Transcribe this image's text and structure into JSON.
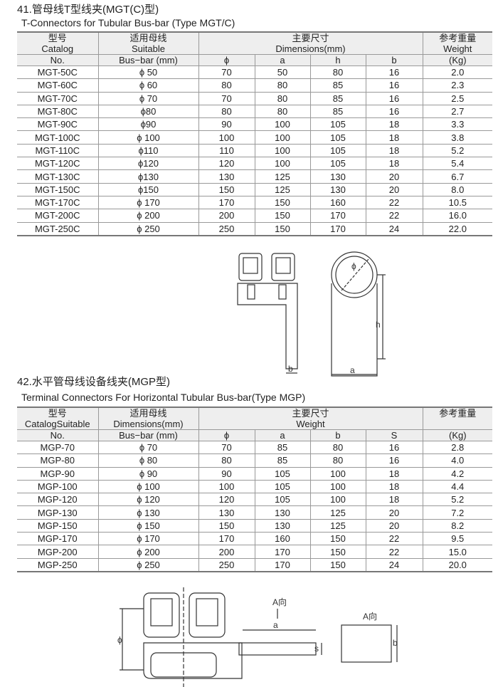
{
  "section1": {
    "title": "41.管母线T型线夹(MGT(C)型)",
    "subtitle": "T-Connectors for Tubular Bus-bar (Type MGT/C)",
    "header": {
      "model": [
        "型号",
        "Catalog",
        "No."
      ],
      "busbar": [
        "适用母线",
        "Suitable",
        "Bus−bar (mm)"
      ],
      "dims": [
        "主要尺寸",
        "Dimensions(mm)"
      ],
      "weight": [
        "参考重量",
        "Weight",
        "(Kg)"
      ],
      "sub": [
        "ϕ",
        "a",
        "h",
        "b"
      ]
    },
    "rows": [
      [
        "MGT-50C",
        "ϕ 50",
        "70",
        "50",
        "80",
        "16",
        "2.0"
      ],
      [
        "MGT-60C",
        "ϕ 60",
        "80",
        "80",
        "85",
        "16",
        "2.3"
      ],
      [
        "MGT-70C",
        "ϕ 70",
        "70",
        "80",
        "85",
        "16",
        "2.5"
      ],
      [
        "MGT-80C",
        "ϕ80",
        "80",
        "80",
        "85",
        "16",
        "2.7"
      ],
      [
        "MGT-90C",
        "ϕ90",
        "90",
        "100",
        "105",
        "18",
        "3.3"
      ],
      [
        "MGT-100C",
        "ϕ 100",
        "100",
        "100",
        "105",
        "18",
        "3.8"
      ],
      [
        "MGT-110C",
        "ϕ110",
        "110",
        "100",
        "105",
        "18",
        "5.2"
      ],
      [
        "MGT-120C",
        "ϕ120",
        "120",
        "100",
        "105",
        "18",
        "5.4"
      ],
      [
        "MGT-130C",
        "ϕ130",
        "130",
        "125",
        "130",
        "20",
        "6.7"
      ],
      [
        "MGT-150C",
        "ϕ150",
        "150",
        "125",
        "130",
        "20",
        "8.0"
      ],
      [
        "MGT-170C",
        "ϕ 170",
        "170",
        "150",
        "160",
        "22",
        "10.5"
      ],
      [
        "MGT-200C",
        "ϕ 200",
        "200",
        "150",
        "170",
        "22",
        "16.0"
      ],
      [
        "MGT-250C",
        "ϕ 250",
        "250",
        "150",
        "170",
        "24",
        "22.0"
      ]
    ],
    "drawing_labels": {
      "phi": "ϕ",
      "h": "h",
      "b": "b",
      "a": "a"
    }
  },
  "section2": {
    "title": "42.水平管母线设备线夹(MGP型)",
    "subtitle": "Terminal Connectors For Horizontal Tubular Bus-bar(Type MGP)",
    "header": {
      "model": [
        "型号",
        "CatalogSuitable",
        "No."
      ],
      "busbar": [
        "适用母线",
        "Dimensions(mm)",
        "Bus−bar (mm)"
      ],
      "dims": [
        "主要尺寸",
        "Weight"
      ],
      "weight": [
        "参考重量",
        "",
        "(Kg)"
      ],
      "sub": [
        "ϕ",
        "a",
        "b",
        "S"
      ]
    },
    "rows": [
      [
        "MGP-70",
        "ϕ 70",
        "70",
        "85",
        "80",
        "16",
        "2.8"
      ],
      [
        "MGP-80",
        "ϕ 80",
        "80",
        "85",
        "80",
        "16",
        "4.0"
      ],
      [
        "MGP-90",
        "ϕ 90",
        "90",
        "105",
        "100",
        "18",
        "4.2"
      ],
      [
        "MGP-100",
        "ϕ 100",
        "100",
        "105",
        "100",
        "18",
        "4.4"
      ],
      [
        "MGP-120",
        "ϕ 120",
        "120",
        "105",
        "100",
        "18",
        "5.2"
      ],
      [
        "MGP-130",
        "ϕ 130",
        "130",
        "130",
        "125",
        "20",
        "7.2"
      ],
      [
        "MGP-150",
        "ϕ 150",
        "150",
        "130",
        "125",
        "20",
        "8.2"
      ],
      [
        "MGP-170",
        "ϕ 170",
        "170",
        "160",
        "150",
        "22",
        "9.5"
      ],
      [
        "MGP-200",
        "ϕ 200",
        "200",
        "170",
        "150",
        "22",
        "15.0"
      ],
      [
        "MGP-250",
        "ϕ 250",
        "250",
        "170",
        "150",
        "24",
        "20.0"
      ]
    ],
    "drawing_labels": {
      "view_a1": "A向",
      "view_a2": "A向",
      "a": "a",
      "s": "s",
      "b": "b",
      "phi": "ϕ"
    }
  }
}
